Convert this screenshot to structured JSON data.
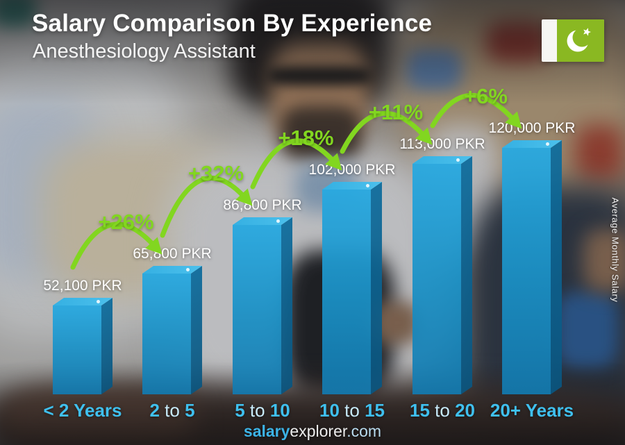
{
  "header": {
    "title": "Salary Comparison By Experience",
    "subtitle": "Anesthesiology Assistant"
  },
  "flag": {
    "country": "Pakistan",
    "colors": {
      "field": "#8ab822",
      "stripe": "#f6f6f3",
      "emblem": "#ffffff"
    }
  },
  "footer": {
    "brand_bold": "salary",
    "brand_light": "explorer",
    "tld": ".com"
  },
  "chart_data": {
    "type": "bar",
    "title": "Salary Comparison By Experience",
    "subtitle": "Anesthesiology Assistant",
    "unit": "PKR",
    "categories": [
      "< 2 Years",
      "2 to 5",
      "5 to 10",
      "10 to 15",
      "15 to 20",
      "20+ Years"
    ],
    "category_segments": [
      [
        {
          "t": "< 2 Years",
          "strong": true
        }
      ],
      [
        {
          "t": "2",
          "strong": true
        },
        {
          "t": " to ",
          "strong": false
        },
        {
          "t": "5",
          "strong": true
        }
      ],
      [
        {
          "t": "5",
          "strong": true
        },
        {
          "t": " to ",
          "strong": false
        },
        {
          "t": "10",
          "strong": true
        }
      ],
      [
        {
          "t": "10",
          "strong": true
        },
        {
          "t": " to ",
          "strong": false
        },
        {
          "t": "15",
          "strong": true
        }
      ],
      [
        {
          "t": "15",
          "strong": true
        },
        {
          "t": " to ",
          "strong": false
        },
        {
          "t": "20",
          "strong": true
        }
      ],
      [
        {
          "t": "20+ Years",
          "strong": true
        }
      ]
    ],
    "values": [
      52100,
      65800,
      86800,
      102000,
      113000,
      120000
    ],
    "value_labels": [
      "52,100 PKR",
      "65,800 PKR",
      "86,800 PKR",
      "102,000 PKR",
      "113,000 PKR",
      "120,000 PKR"
    ],
    "pct_increase_labels": [
      "+26%",
      "+32%",
      "+18%",
      "+11%",
      "+6%"
    ],
    "ylabel": "Average Monthly Salary",
    "legend": "none",
    "grid": "off",
    "colors": {
      "bar_front": "#1f9ed6",
      "bar_side": "#0e6d9d",
      "bar_top": "#3fb8e8",
      "accent_green": "#82d620",
      "category_strong": "#3fc0ef",
      "category_light": "#c9ecfb",
      "value_text": "#ffffff"
    }
  }
}
